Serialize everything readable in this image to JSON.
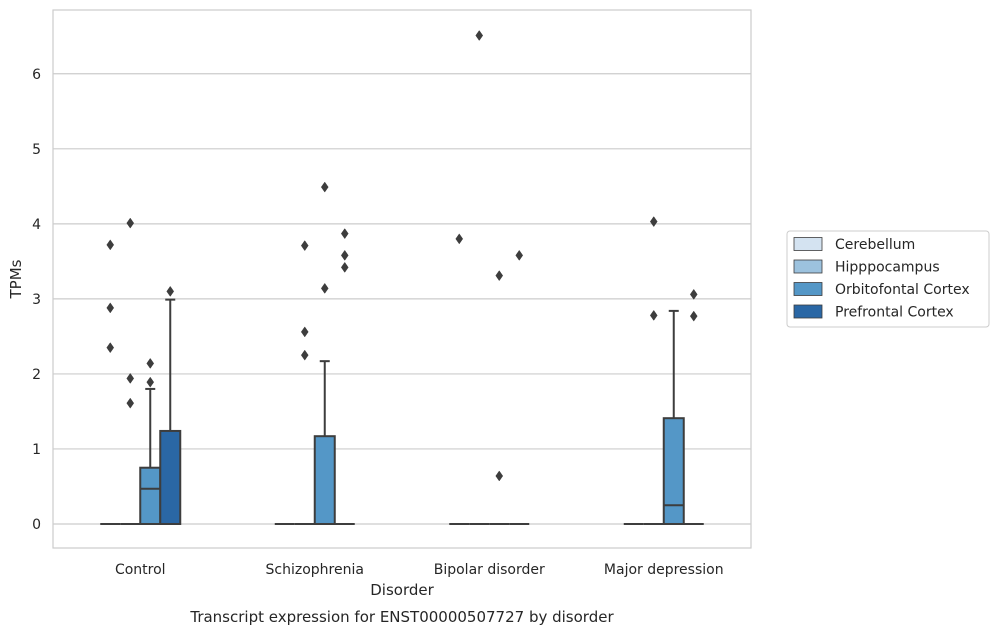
{
  "caption": "Transcript expression for ENST00000507727 by disorder",
  "chart_data": {
    "type": "box",
    "title": "",
    "xlabel": "Disorder",
    "ylabel": "TPMs",
    "ylim": [
      -0.32,
      6.85
    ],
    "yticks": [
      0,
      1,
      2,
      3,
      4,
      5,
      6
    ],
    "grid": "horizontal",
    "legend_position": "right",
    "categories": [
      "Control",
      "Schizophrenia",
      "Bipolar disorder",
      "Major depression"
    ],
    "series": [
      {
        "name": "Cerebellum",
        "color": "#d4e3f1",
        "boxes": [
          {
            "q1": 0,
            "median": 0,
            "q3": 0,
            "whisker_low": 0,
            "whisker_high": 0,
            "outliers": [
              3.72,
              2.88,
              2.35
            ]
          },
          {
            "q1": 0,
            "median": 0,
            "q3": 0,
            "whisker_low": 0,
            "whisker_high": 0,
            "outliers": []
          },
          {
            "q1": 0,
            "median": 0,
            "q3": 0,
            "whisker_low": 0,
            "whisker_high": 0,
            "outliers": [
              3.8
            ]
          },
          {
            "q1": 0,
            "median": 0,
            "q3": 0,
            "whisker_low": 0,
            "whisker_high": 0,
            "outliers": []
          }
        ]
      },
      {
        "name": "Hipppocampus",
        "color": "#9cc2de",
        "boxes": [
          {
            "q1": 0,
            "median": 0,
            "q3": 0,
            "whisker_low": 0,
            "whisker_high": 0,
            "outliers": [
              4.01,
              1.94,
              1.61
            ]
          },
          {
            "q1": 0,
            "median": 0,
            "q3": 0,
            "whisker_low": 0,
            "whisker_high": 0,
            "outliers": [
              3.71,
              2.56,
              2.25
            ]
          },
          {
            "q1": 0,
            "median": 0,
            "q3": 0,
            "whisker_low": 0,
            "whisker_high": 0,
            "outliers": [
              6.51
            ]
          },
          {
            "q1": 0,
            "median": 0,
            "q3": 0,
            "whisker_low": 0,
            "whisker_high": 0,
            "outliers": [
              4.03,
              2.78
            ]
          }
        ]
      },
      {
        "name": "Orbitofontal Cortex",
        "color": "#5497c7",
        "boxes": [
          {
            "q1": 0,
            "median": 0.47,
            "q3": 0.75,
            "whisker_low": 0,
            "whisker_high": 1.8,
            "outliers": [
              2.14,
              1.89
            ]
          },
          {
            "q1": 0,
            "median": 0,
            "q3": 1.17,
            "whisker_low": 0,
            "whisker_high": 2.17,
            "outliers": [
              4.49,
              3.14
            ]
          },
          {
            "q1": 0,
            "median": 0,
            "q3": 0,
            "whisker_low": 0,
            "whisker_high": 0,
            "outliers": [
              3.31,
              0.64
            ]
          },
          {
            "q1": 0,
            "median": 0.25,
            "q3": 1.41,
            "whisker_low": 0,
            "whisker_high": 2.84,
            "outliers": []
          }
        ]
      },
      {
        "name": "Prefrontal Cortex",
        "color": "#2a67a5",
        "boxes": [
          {
            "q1": 0,
            "median": 0,
            "q3": 1.24,
            "whisker_low": 0,
            "whisker_high": 2.99,
            "outliers": [
              3.1
            ]
          },
          {
            "q1": 0,
            "median": 0,
            "q3": 0,
            "whisker_low": 0,
            "whisker_high": 0,
            "outliers": [
              3.87,
              3.58,
              3.42
            ]
          },
          {
            "q1": 0,
            "median": 0,
            "q3": 0,
            "whisker_low": 0,
            "whisker_high": 0,
            "outliers": [
              3.58
            ]
          },
          {
            "q1": 0,
            "median": 0,
            "q3": 0,
            "whisker_low": 0,
            "whisker_high": 0,
            "outliers": [
              3.06,
              2.77
            ]
          }
        ]
      }
    ]
  }
}
